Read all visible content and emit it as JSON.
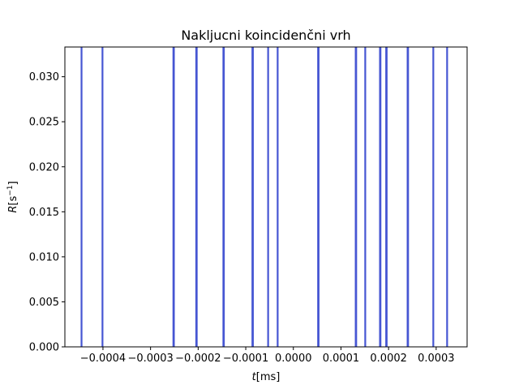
{
  "chart_data": {
    "type": "bar",
    "title": "Nakljucni koincidenčni vrh",
    "xlabel_italic": "t",
    "xlabel_unit": "[ms]",
    "ylabel_italic": "R",
    "ylabel_unit_base": "[s",
    "ylabel_unit_exp": "−1",
    "ylabel_unit_close": "]",
    "xlim": [
      -0.00048,
      0.000365
    ],
    "ylim": [
      0,
      0.0333
    ],
    "grid": false,
    "bar_color": "#4656d3",
    "x_ticks": [
      -0.0004,
      -0.0003,
      -0.0002,
      -0.0001,
      0.0,
      0.0001,
      0.0002,
      0.0003
    ],
    "x_tick_labels": [
      "−0.0004",
      "−0.0003",
      "−0.0002",
      "−0.0001",
      "0.0000",
      "0.0001",
      "0.0002",
      "0.0003"
    ],
    "y_ticks": [
      0.0,
      0.005,
      0.01,
      0.015,
      0.02,
      0.025,
      0.03
    ],
    "y_tick_labels": [
      "0.000",
      "0.005",
      "0.010",
      "0.015",
      "0.020",
      "0.025",
      "0.030"
    ],
    "x": [
      -0.000445,
      -0.000401,
      -0.000252,
      -0.000251,
      -0.000204,
      -0.000203,
      -0.000147,
      -0.000146,
      -8.6e-05,
      -8.5e-05,
      -5.3e-05,
      -3.3e-05,
      5.2e-05,
      5.3e-05,
      0.000131,
      0.000132,
      0.000151,
      0.000182,
      0.000183,
      0.000195,
      0.000196,
      0.00024,
      0.000241,
      0.000294,
      0.000323
    ],
    "values": [
      0.0333,
      0.0333,
      0.0333,
      0.0333,
      0.0333,
      0.0333,
      0.0333,
      0.0333,
      0.0333,
      0.0333,
      0.0333,
      0.0333,
      0.0333,
      0.0333,
      0.0333,
      0.0333,
      0.0333,
      0.0333,
      0.0333,
      0.0333,
      0.0333,
      0.0333,
      0.0333,
      0.0333,
      0.0333
    ]
  }
}
